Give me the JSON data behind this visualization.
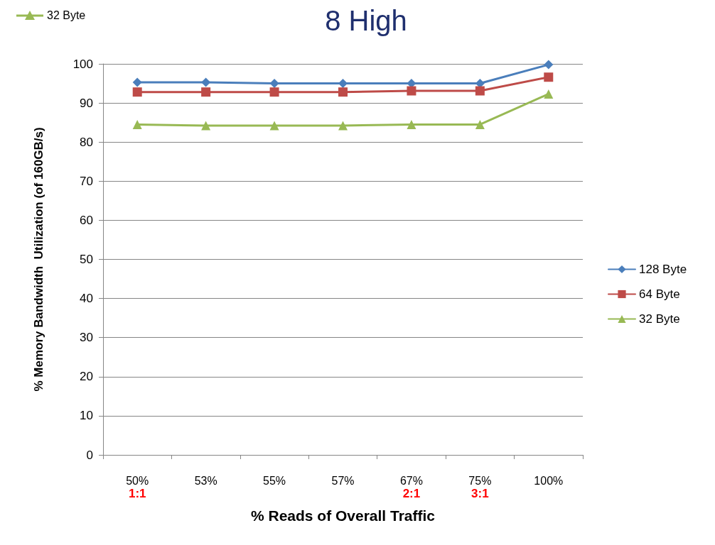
{
  "chart_data": {
    "type": "line",
    "title": "8 High",
    "xlabel": "% Reads of Overall Traffic",
    "ylabel": "% Memory Bandwidth  Utilization (of 160GB/s)",
    "categories": [
      "50%",
      "53%",
      "55%",
      "57%",
      "67%",
      "75%",
      "100%"
    ],
    "series": [
      {
        "name": "128 Byte",
        "color": "#4a7ebb",
        "marker": "diamond",
        "values": [
          95.3,
          95.3,
          95,
          95,
          95,
          95,
          99.8
        ]
      },
      {
        "name": "64 Byte",
        "color": "#be4b48",
        "marker": "square",
        "values": [
          92.8,
          92.8,
          92.8,
          92.8,
          93.1,
          93.1,
          96.6
        ]
      },
      {
        "name": "32 Byte",
        "color": "#98b954",
        "marker": "triangle",
        "values": [
          84.5,
          84.2,
          84.2,
          84.2,
          84.5,
          84.5,
          92.3
        ]
      }
    ],
    "ylim": [
      0,
      100
    ],
    "yticks": [
      0,
      10,
      20,
      30,
      40,
      50,
      60,
      70,
      80,
      90,
      100
    ],
    "grid": "y",
    "legend": "right",
    "annotations": [
      "32 Byte",
      "1:1",
      "2:1",
      "3:1"
    ]
  }
}
